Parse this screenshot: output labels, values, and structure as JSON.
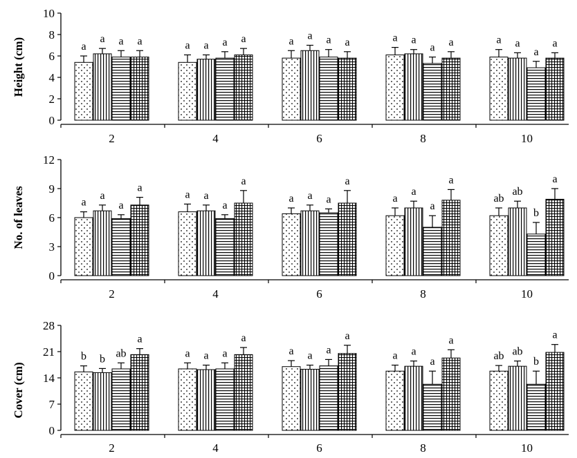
{
  "chart_data": [
    {
      "type": "bar",
      "ylabel": "Height (cm)",
      "categories": [
        "2",
        "4",
        "6",
        "8",
        "10"
      ],
      "ylim": [
        0,
        10
      ],
      "yticks": [
        "0",
        "2",
        "4",
        "6",
        "8",
        "10"
      ],
      "series": [
        {
          "pattern": "dots",
          "values": [
            5.4,
            5.4,
            5.8,
            6.1,
            5.9
          ],
          "errors": [
            0.6,
            0.7,
            0.7,
            0.7,
            0.7
          ],
          "letters": [
            "a",
            "a",
            "a",
            "a",
            "a"
          ]
        },
        {
          "pattern": "vertical-lines",
          "values": [
            6.2,
            5.7,
            6.5,
            6.2,
            5.8
          ],
          "errors": [
            0.5,
            0.4,
            0.5,
            0.4,
            0.5
          ],
          "letters": [
            "a",
            "a",
            "a",
            "a",
            "a"
          ]
        },
        {
          "pattern": "horizontal-lines",
          "values": [
            5.9,
            5.8,
            5.9,
            5.3,
            4.9
          ],
          "errors": [
            0.6,
            0.6,
            0.7,
            0.6,
            0.6
          ],
          "letters": [
            "a",
            "a",
            "a",
            "a",
            "a"
          ]
        },
        {
          "pattern": "grid",
          "values": [
            5.9,
            6.1,
            5.8,
            5.8,
            5.8
          ],
          "errors": [
            0.6,
            0.6,
            0.6,
            0.6,
            0.5
          ],
          "letters": [
            "a",
            "a",
            "a",
            "a",
            "a"
          ]
        }
      ]
    },
    {
      "type": "bar",
      "ylabel": "No. of leaves",
      "categories": [
        "2",
        "4",
        "6",
        "8",
        "10"
      ],
      "ylim": [
        0,
        12
      ],
      "yticks": [
        "0",
        "3",
        "6",
        "9",
        "12"
      ],
      "series": [
        {
          "pattern": "dots",
          "values": [
            6.0,
            6.6,
            6.4,
            6.2,
            6.2
          ],
          "errors": [
            0.6,
            0.8,
            0.6,
            0.8,
            0.8
          ],
          "letters": [
            "a",
            "a",
            "a",
            "a",
            "ab"
          ]
        },
        {
          "pattern": "vertical-lines",
          "values": [
            6.7,
            6.7,
            6.7,
            7.0,
            7.0
          ],
          "errors": [
            0.6,
            0.6,
            0.6,
            0.7,
            0.7
          ],
          "letters": [
            "a",
            "a",
            "a",
            "a",
            "ab"
          ]
        },
        {
          "pattern": "horizontal-lines",
          "values": [
            5.9,
            5.9,
            6.5,
            5.0,
            4.3
          ],
          "errors": [
            0.4,
            0.4,
            0.4,
            1.2,
            1.2
          ],
          "letters": [
            "a",
            "a",
            "a",
            "a",
            "b"
          ]
        },
        {
          "pattern": "grid",
          "values": [
            7.3,
            7.5,
            7.5,
            7.8,
            7.9
          ],
          "errors": [
            0.8,
            1.3,
            1.3,
            1.1,
            1.1
          ],
          "letters": [
            "a",
            "a",
            "a",
            "a",
            "a"
          ]
        }
      ]
    },
    {
      "type": "bar",
      "ylabel": "Cover (cm)",
      "categories": [
        "2",
        "4",
        "6",
        "8",
        "10"
      ],
      "ylim": [
        0,
        28
      ],
      "yticks": [
        "0",
        "7",
        "14",
        "21",
        "28"
      ],
      "series": [
        {
          "pattern": "dots",
          "values": [
            15.6,
            16.4,
            17.0,
            15.8,
            15.8
          ],
          "errors": [
            1.6,
            1.6,
            1.6,
            1.6,
            1.5
          ],
          "letters": [
            "b",
            "a",
            "a",
            "a",
            "ab"
          ]
        },
        {
          "pattern": "vertical-lines",
          "values": [
            15.4,
            16.2,
            16.3,
            17.1,
            17.1
          ],
          "errors": [
            1.1,
            1.2,
            1.1,
            1.4,
            1.4
          ],
          "letters": [
            "b",
            "a",
            "a",
            "a",
            "ab"
          ]
        },
        {
          "pattern": "horizontal-lines",
          "values": [
            16.4,
            16.4,
            17.2,
            12.3,
            12.3
          ],
          "errors": [
            1.6,
            1.6,
            1.7,
            3.5,
            3.5
          ],
          "letters": [
            "ab",
            "a",
            "a",
            "a",
            "b"
          ]
        },
        {
          "pattern": "grid",
          "values": [
            20.2,
            20.2,
            20.5,
            19.3,
            20.8
          ],
          "errors": [
            1.6,
            1.9,
            2.2,
            2.2,
            2.1
          ],
          "letters": [
            "a",
            "a",
            "a",
            "a",
            "a"
          ]
        }
      ]
    }
  ]
}
